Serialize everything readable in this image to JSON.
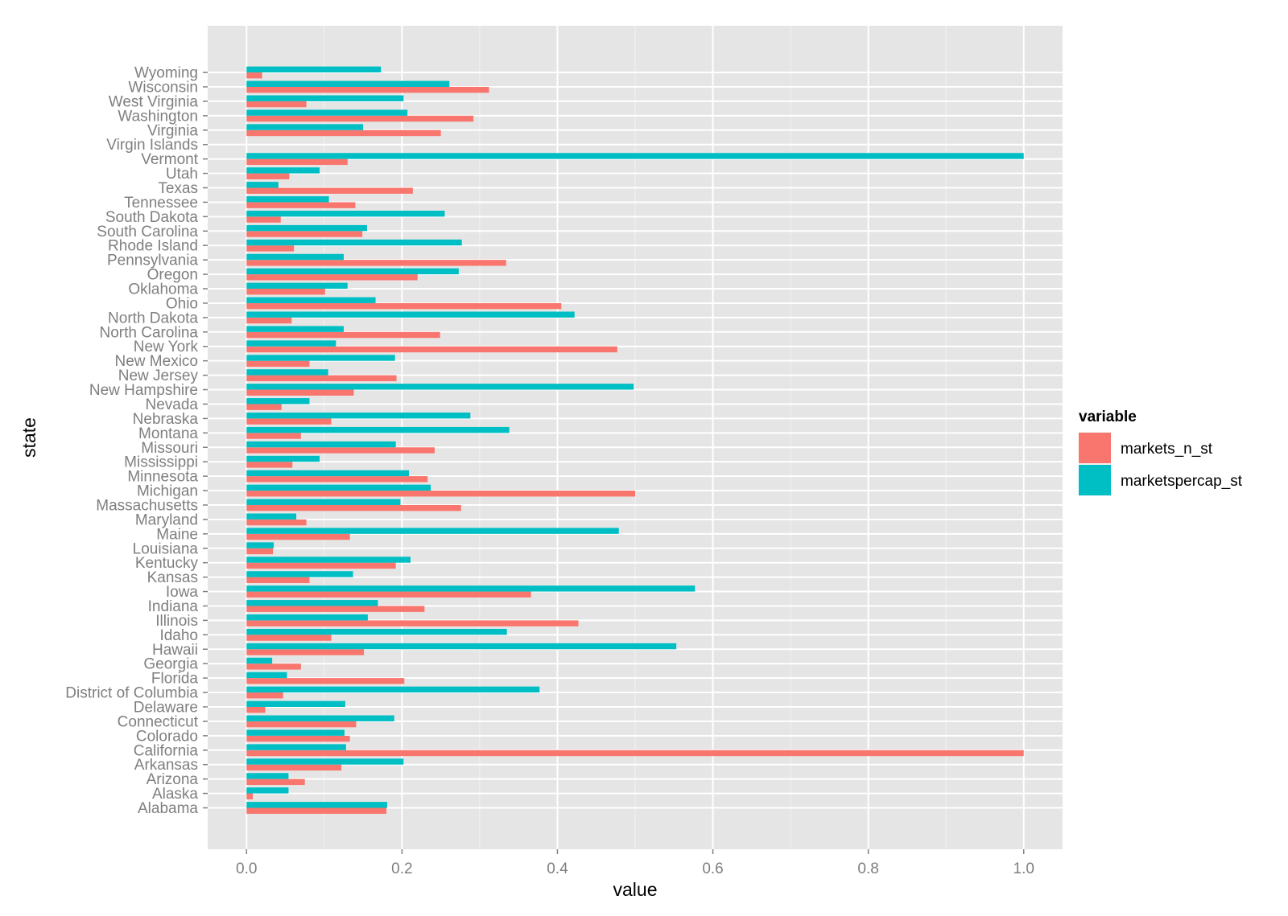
{
  "chart_data": {
    "type": "bar",
    "orientation": "horizontal",
    "xlabel": "value",
    "ylabel": "state",
    "xlim": [
      -0.05,
      1.05
    ],
    "xticks": [
      0.0,
      0.2,
      0.4,
      0.6,
      0.8,
      1.0
    ],
    "xtick_labels": [
      "0.0",
      "0.2",
      "0.4",
      "0.6",
      "0.8",
      "1.0"
    ],
    "grid": true,
    "legend": {
      "title": "variable",
      "placement": "right"
    },
    "categories": [
      "Alabama",
      "Alaska",
      "Arizona",
      "Arkansas",
      "California",
      "Colorado",
      "Connecticut",
      "Delaware",
      "District of Columbia",
      "Florida",
      "Georgia",
      "Hawaii",
      "Idaho",
      "Illinois",
      "Indiana",
      "Iowa",
      "Kansas",
      "Kentucky",
      "Louisiana",
      "Maine",
      "Maryland",
      "Massachusetts",
      "Michigan",
      "Minnesota",
      "Mississippi",
      "Missouri",
      "Montana",
      "Nebraska",
      "Nevada",
      "New Hampshire",
      "New Jersey",
      "New Mexico",
      "New York",
      "North Carolina",
      "North Dakota",
      "Ohio",
      "Oklahoma",
      "Oregon",
      "Pennsylvania",
      "Rhode Island",
      "South Carolina",
      "South Dakota",
      "Tennessee",
      "Texas",
      "Utah",
      "Vermont",
      "Virgin Islands",
      "Virginia",
      "Washington",
      "West Virginia",
      "Wisconsin",
      "Wyoming"
    ],
    "series": [
      {
        "name": "markets_n_st",
        "color": "#F8766D",
        "values": [
          0.18,
          0.008,
          0.075,
          0.122,
          1.0,
          0.133,
          0.141,
          0.024,
          0.047,
          0.203,
          0.07,
          0.151,
          0.109,
          0.427,
          0.229,
          0.366,
          0.081,
          0.192,
          0.034,
          0.133,
          0.077,
          0.276,
          0.5,
          0.233,
          0.059,
          0.242,
          0.07,
          0.109,
          0.045,
          0.138,
          0.193,
          0.081,
          0.477,
          0.249,
          0.058,
          0.405,
          0.101,
          0.22,
          0.334,
          0.061,
          0.149,
          0.044,
          0.14,
          0.214,
          0.055,
          0.13,
          0.0,
          0.25,
          0.292,
          0.077,
          0.312,
          0.02
        ]
      },
      {
        "name": "marketspercap_st",
        "color": "#00BFC4",
        "values": [
          0.181,
          0.054,
          0.054,
          0.202,
          0.128,
          0.126,
          0.19,
          0.127,
          0.377,
          0.052,
          0.033,
          0.553,
          0.335,
          0.156,
          0.169,
          0.577,
          0.137,
          0.211,
          0.035,
          0.479,
          0.064,
          0.198,
          0.237,
          0.209,
          0.094,
          0.192,
          0.338,
          0.288,
          0.081,
          0.498,
          0.105,
          0.191,
          0.115,
          0.125,
          0.422,
          0.166,
          0.13,
          0.273,
          0.125,
          0.277,
          0.155,
          0.255,
          0.106,
          0.041,
          0.094,
          1.0,
          0.0,
          0.15,
          0.207,
          0.202,
          0.261,
          0.173
        ]
      }
    ]
  }
}
